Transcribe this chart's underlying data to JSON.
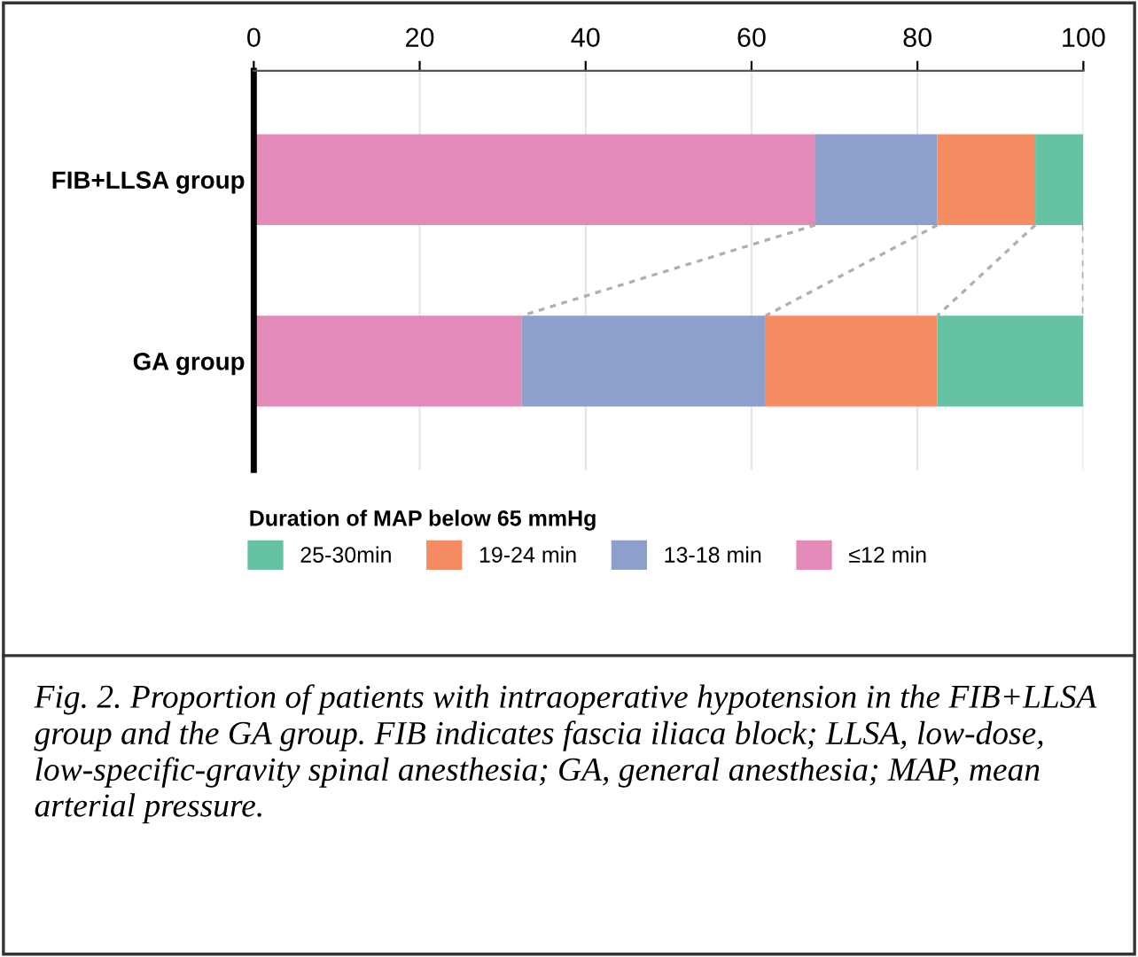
{
  "chart_data": {
    "type": "bar",
    "orientation": "horizontal",
    "stacked": true,
    "categories": [
      "FIB+LLSA group",
      "GA group"
    ],
    "series": [
      {
        "name": "≤12 min",
        "color": "#e48ab9",
        "values": [
          67.7,
          32.3
        ]
      },
      {
        "name": "13-18 min",
        "color": "#8da0cb",
        "values": [
          14.7,
          29.4
        ]
      },
      {
        "name": "19-24 min",
        "color": "#f58c62",
        "values": [
          11.8,
          20.7
        ]
      },
      {
        "name": "25-30min",
        "color": "#66c2a5",
        "values": [
          5.8,
          17.6
        ]
      }
    ],
    "xlim": [
      0,
      100
    ],
    "xticks": [
      0,
      20,
      40,
      60,
      80,
      100
    ],
    "grid": "x",
    "legend": "bottom",
    "legend_title": "Duration of MAP below 65 mmHg",
    "annotations": [
      "Fig. 2. Proportion of patients with intraoperative hypotension in the FIB+LLSA group and the GA group. FIB indicates fascia iliaca block; LLSA, low-dose, low-specific-gravity spinal anesthesia; GA, general anesthesia; MAP, mean arterial pressure."
    ]
  }
}
